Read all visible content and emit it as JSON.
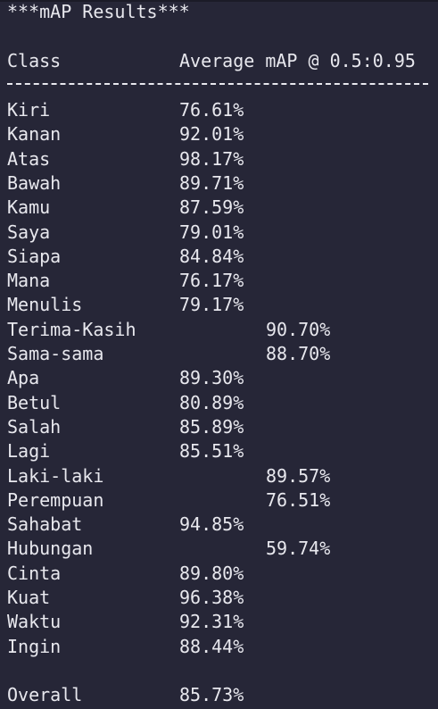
{
  "title": "***mAP Results***",
  "header": {
    "class_label": "Class",
    "value_label": "Average mAP @ 0.5:0.95"
  },
  "rows": [
    {
      "cls": "Kiri",
      "val": "76.61%"
    },
    {
      "cls": "Kanan",
      "val": "92.01%"
    },
    {
      "cls": "Atas",
      "val": "98.17%"
    },
    {
      "cls": "Bawah",
      "val": "89.71%"
    },
    {
      "cls": "Kamu",
      "val": "87.59%"
    },
    {
      "cls": "Saya",
      "val": "79.01%"
    },
    {
      "cls": "Siapa",
      "val": "84.84%"
    },
    {
      "cls": "Mana",
      "val": "76.17%"
    },
    {
      "cls": "Menulis",
      "val": "79.17%"
    },
    {
      "cls": "Terima-Kasih",
      "val": "90.70%"
    },
    {
      "cls": "Sama-sama",
      "val": "88.70%"
    },
    {
      "cls": "Apa",
      "val": "89.30%"
    },
    {
      "cls": "Betul",
      "val": "80.89%"
    },
    {
      "cls": "Salah",
      "val": "85.89%"
    },
    {
      "cls": "Lagi",
      "val": "85.51%"
    },
    {
      "cls": "Laki-laki",
      "val": "89.57%"
    },
    {
      "cls": "Perempuan",
      "val": "76.51%"
    },
    {
      "cls": "Sahabat",
      "val": "94.85%"
    },
    {
      "cls": "Hubungan",
      "val": "59.74%"
    },
    {
      "cls": "Cinta",
      "val": "89.80%"
    },
    {
      "cls": "Kuat",
      "val": "96.38%"
    },
    {
      "cls": "Waktu",
      "val": "92.31%"
    },
    {
      "cls": "Ingin",
      "val": "88.44%"
    }
  ],
  "overall": {
    "label": "Overall",
    "value": "85.73%"
  }
}
